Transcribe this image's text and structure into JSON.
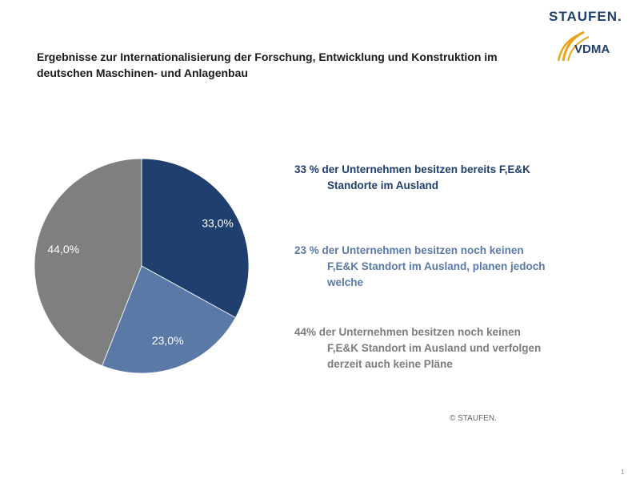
{
  "header": {
    "brand": "STAUFEN.",
    "logo_text": "VDMA",
    "title_line1": "Ergebnisse zur Internationalisierung der Forschung, Entwicklung und Konstruktion im",
    "title_line2": "deutschen Maschinen- und Anlagenbau"
  },
  "chart_data": {
    "type": "pie",
    "slices": [
      {
        "label": "33,0%",
        "value": 33.0,
        "color": "#1f3f6e"
      },
      {
        "label": "23,0%",
        "value": 23.0,
        "color": "#5a79a6"
      },
      {
        "label": "44,0%",
        "value": 44.0,
        "color": "#7f7f7f"
      }
    ],
    "start_angle_deg": 0,
    "direction": "clockwise"
  },
  "legend": [
    {
      "line1": "33 % der Unternehmen besitzen bereits F,E&K",
      "line2": "Standorte im Ausland",
      "color": "#1f3f6e"
    },
    {
      "line1": "23 % der Unternehmen besitzen noch keinen",
      "line2": "F,E&K Standort im Ausland, planen jedoch",
      "line3": "welche",
      "color": "#5a79a6"
    },
    {
      "line1": "44% der Unternehmen besitzen noch keinen",
      "line2": "F,E&K Standort im Ausland und verfolgen",
      "line3": "derzeit auch keine Pläne",
      "color": "#7c7c7c"
    }
  ],
  "footer": {
    "copyright": "© STAUFEN.",
    "page": "1"
  }
}
